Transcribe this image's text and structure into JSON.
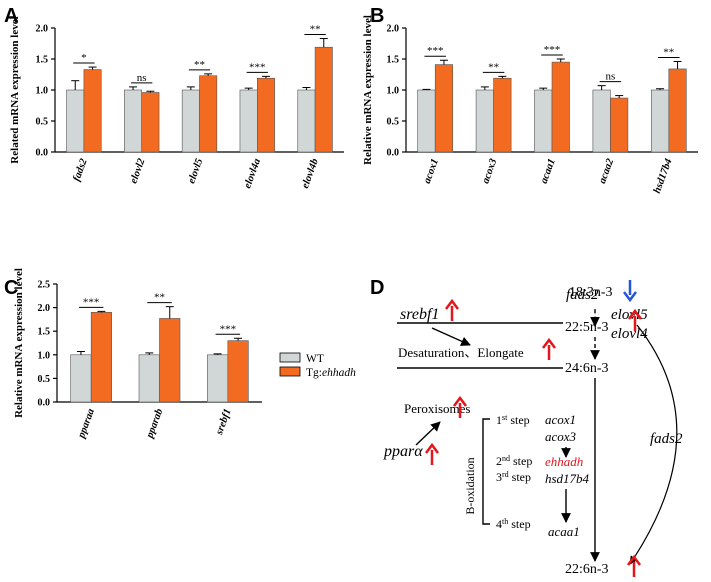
{
  "colors": {
    "wt": "#d0d7d6",
    "tg": "#f36b21",
    "up_arrow": "#e4161b",
    "down_arrow": "#2355d8",
    "highlight": "#e4161b"
  },
  "chart_data": [
    {
      "panel": "A",
      "type": "bar",
      "categories": [
        "fads2",
        "elovl2",
        "elovl5",
        "elovl4a",
        "elovl4b"
      ],
      "ylabel": "Related mRNA expression level",
      "ylim": [
        0,
        2.0
      ],
      "yticks": [
        "0.0",
        "0.5",
        "1.0",
        "1.5",
        "2.0"
      ],
      "series": [
        {
          "name": "WT",
          "values": [
            1.0,
            1.0,
            1.0,
            1.0,
            1.0
          ],
          "errors": [
            0.15,
            0.05,
            0.05,
            0.03,
            0.04
          ]
        },
        {
          "name": "Tg:ehhadh",
          "values": [
            1.33,
            0.96,
            1.23,
            1.19,
            1.69
          ],
          "errors": [
            0.04,
            0.02,
            0.03,
            0.03,
            0.14
          ]
        }
      ],
      "significance": [
        "*",
        "ns",
        "**",
        "***",
        "**"
      ]
    },
    {
      "panel": "B",
      "type": "bar",
      "categories": [
        "acox1",
        "acox3",
        "acaa1",
        "acaa2",
        "hsd17b4"
      ],
      "ylabel": "Relative mRNA expression level",
      "ylim": [
        0,
        2.0
      ],
      "yticks": [
        "0.0",
        "0.5",
        "1.0",
        "1.5",
        "2.0"
      ],
      "series": [
        {
          "name": "WT",
          "values": [
            1.0,
            1.0,
            1.0,
            1.0,
            1.0
          ],
          "errors": [
            0.01,
            0.05,
            0.03,
            0.07,
            0.02
          ]
        },
        {
          "name": "Tg:ehhadh",
          "values": [
            1.41,
            1.19,
            1.45,
            0.87,
            1.34
          ],
          "errors": [
            0.07,
            0.03,
            0.05,
            0.04,
            0.12
          ]
        }
      ],
      "significance": [
        "***",
        "**",
        "***",
        "ns",
        "**"
      ]
    },
    {
      "panel": "C",
      "type": "bar",
      "categories": [
        "pparaa",
        "pparab",
        "srebf1"
      ],
      "ylabel": "Relative mRNA expression level",
      "ylim": [
        0,
        2.5
      ],
      "yticks": [
        "0.0",
        "0.5",
        "1.0",
        "1.5",
        "2.0",
        "2.5"
      ],
      "series": [
        {
          "name": "WT",
          "values": [
            1.0,
            1.0,
            1.0
          ],
          "errors": [
            0.07,
            0.04,
            0.02
          ]
        },
        {
          "name": "Tg:ehhadh",
          "values": [
            1.9,
            1.77,
            1.3
          ],
          "errors": [
            0.02,
            0.25,
            0.05
          ]
        }
      ],
      "significance": [
        "***",
        "**",
        "***"
      ]
    }
  ],
  "legend": {
    "wt": "WT",
    "tg_prefix": "Tg:",
    "tg_gene": "ehhadh"
  },
  "panels": {
    "a": "A",
    "b": "B",
    "c": "C",
    "d": "D"
  },
  "diagram": {
    "n3_18": "18:3n-3",
    "n3_22_5": "22:5n-3",
    "n3_24_6": "24:6n-3",
    "n3_22_6": "22:6n-3",
    "srebf1": "srebf1",
    "fads2_top": "fads2",
    "elovl5": "elovl5",
    "elovl4": "elovl4",
    "desat": "Desaturation、Elongate",
    "perox": "Peroxisomes",
    "ppara": "pparα",
    "fads2_side": "fads2",
    "boxid": "B-oxidation",
    "step1_num": "1",
    "step1_sup": "st",
    "step1_word": " step",
    "step2_num": "2",
    "step2_sup": "nd",
    "step2_word": " step",
    "step3_num": "3",
    "step3_sup": "rd",
    "step3_word": " step",
    "step4_num": "4",
    "step4_sup": "th",
    "step4_word": " step",
    "acox1": "acox1",
    "acox3": "acox3",
    "ehhadh": "ehhadh",
    "hsd17b4": "hsd17b4",
    "acaa1": "acaa1"
  }
}
